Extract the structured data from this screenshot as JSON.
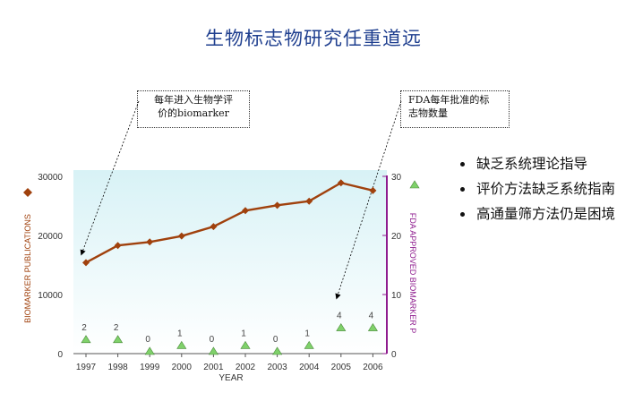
{
  "slide": {
    "title": "生物标志物研究任重道远",
    "callout_publications": [
      "每年进入生物学评",
      "价的biomarker"
    ],
    "callout_fda": [
      "FDA每年批准的标",
      "志物数量"
    ],
    "bullets": [
      "缺乏系统理论指导",
      "评价方法缺乏系统指南",
      "高通量筛方法仍是困境"
    ]
  },
  "colors": {
    "title": "#1f3f8f",
    "publications_line": "#a0410d",
    "fda_axis": "#8e1b8e",
    "fda_marker": "#7fd16a",
    "plot_bg_top": "#d8f2f6",
    "plot_bg_bottom": "#ffffff"
  },
  "chart_data": {
    "type": "line",
    "x": [
      "1997",
      "1998",
      "1999",
      "2000",
      "2001",
      "2002",
      "2003",
      "2004",
      "2005",
      "2006"
    ],
    "xlabel": "YEAR",
    "ylabel_left": "BIOMARKER PUBLICATIONS",
    "ylabel_right": "FDA APPROVED BIOMARKER P",
    "ylim_left": [
      0,
      30000
    ],
    "yticks_left": [
      "0",
      "10000",
      "20000",
      "30000"
    ],
    "ylim_right": [
      0,
      30
    ],
    "yticks_right": [
      "0",
      "10",
      "20",
      "30"
    ],
    "series": [
      {
        "axis": "left",
        "marker": "diamond",
        "values": [
          15400,
          18300,
          18900,
          19900,
          21500,
          24200,
          25100,
          25800,
          28900,
          27600
        ]
      },
      {
        "axis": "right",
        "marker": "triangle",
        "values": [
          2,
          2,
          0,
          1,
          0,
          1,
          0,
          1,
          4,
          4
        ],
        "labels": [
          "2",
          "2",
          "0",
          "1",
          "0",
          "1",
          "0",
          "1",
          "4",
          "4"
        ]
      }
    ],
    "legend_markers": [
      "diamond-left",
      "triangle-right"
    ]
  }
}
